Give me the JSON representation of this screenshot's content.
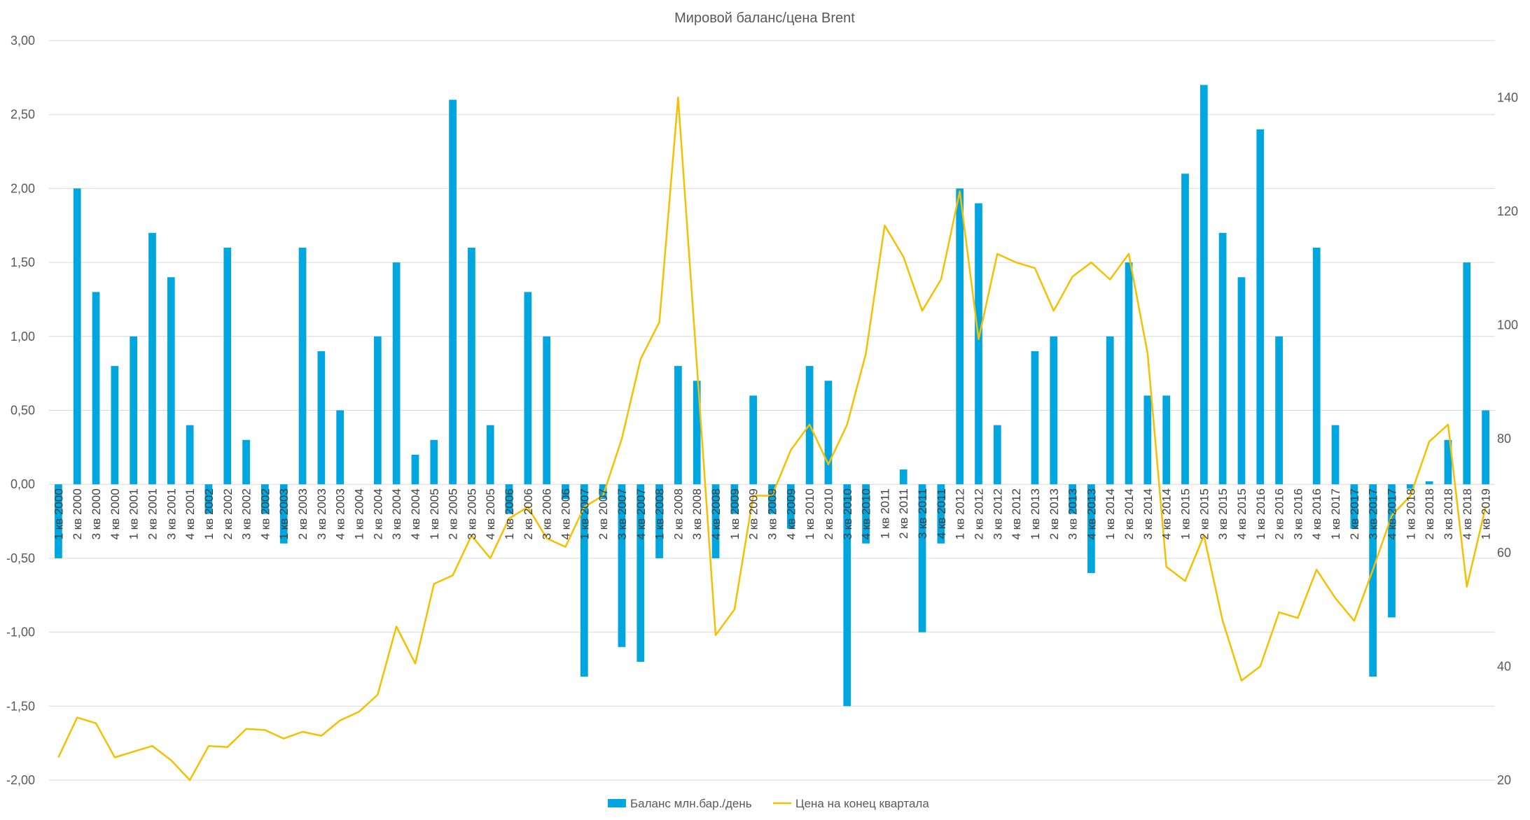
{
  "chart_data": {
    "type": "bar",
    "title": "Мировой баланс/цена Brent",
    "categories": [
      "1 кв 2000",
      "2 кв 2000",
      "3 кв 2000",
      "4 кв 2000",
      "1 кв 2001",
      "2 кв 2001",
      "3 кв 2001",
      "4 кв 2001",
      "1 кв 2002",
      "2 кв 2002",
      "3 кв 2002",
      "4 кв 2002",
      "1 кв 2003",
      "2 кв 2003",
      "3 кв 2003",
      "4 кв 2003",
      "1 кв 2004",
      "2 кв 2004",
      "3 кв 2004",
      "4 кв 2004",
      "1 кв 2005",
      "2 кв 2005",
      "3 кв 2005",
      "4 кв 2005",
      "1 кв 2006",
      "2 кв 2006",
      "3 кв 2006",
      "4 кв 2006",
      "1 кв 2007",
      "2 кв 2007",
      "3 кв 2007",
      "4 кв 2007",
      "1 кв 2008",
      "2 кв 2008",
      "3 кв 2008",
      "4 кв 2008",
      "1 кв 2009",
      "2 кв 2009",
      "3 кв 2009",
      "4 кв 2009",
      "1 кв 2010",
      "2 кв 2010",
      "3 кв 2010",
      "4 кв 2010",
      "1 кв 2011",
      "2 кв 2011",
      "3 кв 2011",
      "4 кв 2011",
      "1 кв 2012",
      "2 кв 2012",
      "3 кв 2012",
      "4 кв 2012",
      "1 кв 2013",
      "2 кв 2013",
      "3 кв 2013",
      "4 кв 2013",
      "1 кв 2014",
      "2 кв 2014",
      "3 кв 2014",
      "4 кв 2014",
      "1 кв 2015",
      "2 кв 2015",
      "3 кв 2015",
      "4 кв 2015",
      "1 кв 2016",
      "2 кв 2016",
      "3 кв 2016",
      "4 кв 2016",
      "1 кв 2017",
      "2 кв 2017",
      "3 кв 2017",
      "4 кв 2017",
      "1 кв 2018",
      "2 кв 2018",
      "3 кв 2018",
      "4 кв 2018",
      "1 кв 2019"
    ],
    "series": [
      {
        "name": "Баланс млн.бар./день",
        "type": "bar",
        "axis": "left",
        "color": "#00a6e0",
        "values": [
          -0.5,
          2.0,
          1.3,
          0.8,
          1.0,
          1.7,
          1.4,
          0.4,
          -0.2,
          1.6,
          0.3,
          -0.2,
          -0.4,
          1.6,
          0.9,
          0.5,
          0.0,
          1.0,
          1.5,
          0.2,
          0.3,
          2.6,
          1.6,
          0.4,
          -0.2,
          1.3,
          1.0,
          -0.1,
          -1.3,
          -0.1,
          -1.1,
          -1.2,
          -0.5,
          0.8,
          0.7,
          -0.5,
          -0.2,
          0.6,
          -0.2,
          -0.3,
          0.8,
          0.7,
          -1.5,
          -0.4,
          0.0,
          0.1,
          -1.0,
          -0.4,
          2.0,
          1.9,
          0.4,
          0.0,
          0.9,
          1.0,
          -0.2,
          -0.6,
          1.0,
          1.5,
          0.6,
          0.6,
          2.1,
          2.7,
          1.7,
          1.4,
          2.4,
          1.0,
          0.0,
          1.6,
          0.4,
          -0.3,
          -1.3,
          -0.9,
          -0.03,
          0.02,
          0.3,
          1.5,
          0.5
        ]
      },
      {
        "name": "Цена на конец квартала",
        "type": "line",
        "axis": "right",
        "color": "#f5c000",
        "values": [
          24,
          31,
          30,
          24,
          25,
          26,
          23.5,
          20,
          26,
          25.8,
          29,
          28.8,
          27.3,
          28.5,
          27.8,
          30.5,
          32,
          35,
          47,
          40.5,
          54.5,
          56,
          63,
          59,
          66,
          68,
          62.5,
          61,
          68,
          70,
          80,
          94,
          100.5,
          140,
          93,
          45.5,
          50,
          70,
          70,
          78,
          82.5,
          75.5,
          82.5,
          95,
          117.5,
          112,
          102.5,
          108,
          123.5,
          97.5,
          112.5,
          111,
          110,
          102.5,
          108.5,
          111,
          108,
          112.5,
          95,
          57.5,
          55,
          63,
          48,
          37.5,
          40,
          49.5,
          48.5,
          57,
          52,
          48,
          57,
          66.5,
          70,
          79.5,
          82.5,
          54,
          68
        ]
      }
    ],
    "y_left": {
      "range": [
        -2.0,
        3.0
      ],
      "ticks": [
        3.0,
        2.5,
        2.0,
        1.5,
        1.0,
        0.5,
        0.0,
        -0.5,
        -1.0,
        -1.5,
        -2.0
      ],
      "tick_labels": [
        "3,00",
        "2,50",
        "2,00",
        "1,50",
        "1,00",
        "0,50",
        "0,00",
        "-0,50",
        "-1,00",
        "-1,50",
        "-2,00"
      ]
    },
    "y_right": {
      "range": [
        20,
        150
      ],
      "ticks": [
        140,
        120,
        100,
        80,
        60,
        40,
        20
      ],
      "tick_labels": [
        "140",
        "120",
        "100",
        "80",
        "60",
        "40",
        "20"
      ]
    },
    "grid": true,
    "legend": "bottom"
  }
}
